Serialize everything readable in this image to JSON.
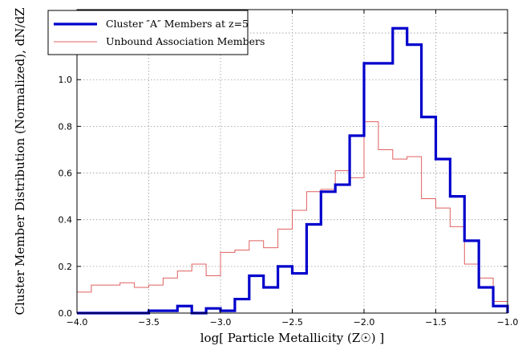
{
  "chart_data": {
    "type": "step",
    "xlabel": "log[ Particle Metallicity (Z☉) ]",
    "ylabel": "Cluster Member Distribution (Normalized), dN/dZ",
    "xlim": [
      -4.0,
      -1.0
    ],
    "ylim": [
      0.0,
      1.3
    ],
    "x_ticks": [
      -4.0,
      -3.5,
      -3.0,
      -2.5,
      -2.0,
      -1.5,
      -1.0
    ],
    "x_tick_labels": [
      "−4.0",
      "−3.5",
      "−3.0",
      "−2.5",
      "−2.0",
      "−1.5",
      "−1.0"
    ],
    "y_ticks": [
      0.0,
      0.2,
      0.4,
      0.6,
      0.8,
      1.0,
      1.2
    ],
    "y_tick_labels": [
      "0.0",
      "0.2",
      "0.4",
      "0.6",
      "0.8",
      "1.0",
      "1.2"
    ],
    "grid": true,
    "legend_position": "top-left",
    "bin_edges": [
      -4.0,
      -3.9,
      -3.8,
      -3.7,
      -3.6,
      -3.5,
      -3.4,
      -3.3,
      -3.2,
      -3.1,
      -3.0,
      -2.9,
      -2.8,
      -2.7,
      -2.6,
      -2.5,
      -2.4,
      -2.3,
      -2.2,
      -2.1,
      -2.0,
      -1.9,
      -1.8,
      -1.7,
      -1.6,
      -1.5,
      -1.4,
      -1.3,
      -1.2,
      -1.1,
      -1.0
    ],
    "series": [
      {
        "name": "Cluster ″A″ Members at z=5",
        "color": "#0000cc",
        "values": [
          0.0,
          0.0,
          0.0,
          0.0,
          0.0,
          0.01,
          0.01,
          0.03,
          0.0,
          0.02,
          0.01,
          0.06,
          0.16,
          0.11,
          0.2,
          0.17,
          0.38,
          0.52,
          0.55,
          0.76,
          1.07,
          1.07,
          1.22,
          1.15,
          0.84,
          0.66,
          0.5,
          0.31,
          0.11,
          0.03
        ]
      },
      {
        "name": "Unbound Association Members",
        "color": "#e06060",
        "values": [
          0.09,
          0.12,
          0.12,
          0.13,
          0.11,
          0.12,
          0.15,
          0.18,
          0.21,
          0.16,
          0.26,
          0.27,
          0.31,
          0.28,
          0.36,
          0.44,
          0.52,
          0.53,
          0.61,
          0.58,
          0.82,
          0.7,
          0.66,
          0.67,
          0.49,
          0.45,
          0.37,
          0.21,
          0.15,
          0.05
        ]
      }
    ]
  }
}
